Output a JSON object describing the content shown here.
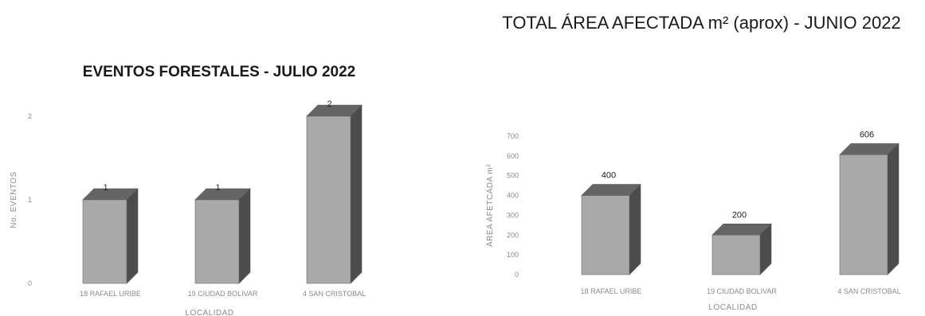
{
  "chart_data": [
    {
      "type": "bar",
      "title": "EVENTOS FORESTALES - JULIO 2022",
      "xlabel": "LOCALIDAD",
      "ylabel": "No. EVENTOS",
      "categories": [
        "18 RAFAEL URIBE",
        "19 CIUDAD BOLIVAR",
        "4 SAN CRISTOBAL"
      ],
      "values": [
        1,
        1,
        2
      ],
      "data_labels": [
        "1",
        "1",
        "2"
      ],
      "ylim": [
        0,
        2
      ],
      "yticks": [
        "0",
        "1",
        "2"
      ],
      "style": "3d-column",
      "grid": false,
      "bar_color": "#a9a9a9"
    },
    {
      "type": "bar",
      "title": "TOTAL ÁREA AFECTADA m² (aprox) - JUNIO 2022",
      "xlabel": "LOCALIDAD",
      "ylabel": "ÁREA AFETCADA m²",
      "categories": [
        "18 RAFAEL URIBE",
        "19 CIUDAD BOLIVAR",
        "4 SAN CRISTOBAL"
      ],
      "values": [
        400,
        200,
        606
      ],
      "data_labels": [
        "400",
        "200",
        "606"
      ],
      "ylim": [
        0,
        700
      ],
      "yticks": [
        "0",
        "100",
        "200",
        "300",
        "400",
        "500",
        "600",
        "700"
      ],
      "style": "3d-column",
      "grid": false,
      "bar_color": "#a9a9a9"
    }
  ]
}
